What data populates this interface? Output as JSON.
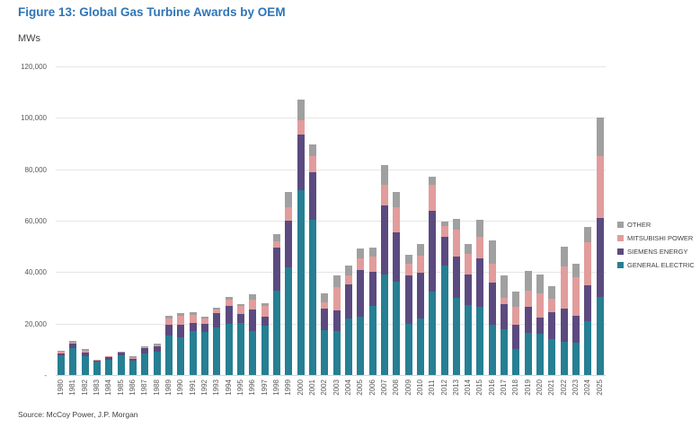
{
  "title": "Figure 13: Global Gas Turbine Awards by OEM",
  "units_label": "MWs",
  "source": "Source: McCoy Power, J.P. Morgan",
  "legend": [
    {
      "label": "OTHER",
      "color": "#A0A0A0"
    },
    {
      "label": "MITSUBISHI POWER",
      "color": "#E29C9C"
    },
    {
      "label": "SIEMENS ENERGY",
      "color": "#5B4A80"
    },
    {
      "label": "GENERAL ELECTRIC",
      "color": "#267F93"
    }
  ],
  "chart_data": {
    "type": "bar",
    "stacked": true,
    "title": "Figure 13: Global Gas Turbine Awards by OEM",
    "xlabel": "",
    "ylabel": "MWs",
    "ylim": [
      0,
      120000
    ],
    "grid": true,
    "legend_position": "right",
    "yticks": [
      {
        "label": "120,000",
        "value": 120000
      },
      {
        "label": "100,000",
        "value": 100000
      },
      {
        "label": "80,000",
        "value": 80000
      },
      {
        "label": "60,000",
        "value": 60000
      },
      {
        "label": "40,000",
        "value": 40000
      },
      {
        "label": "20,000",
        "value": 20000
      },
      {
        "label": "-",
        "value": 0
      }
    ],
    "categories": [
      "1980",
      "1981",
      "1982",
      "1983",
      "1984",
      "1985",
      "1986",
      "1987",
      "1988",
      "1989",
      "1990",
      "1991",
      "1992",
      "1993",
      "1994",
      "1995",
      "1996",
      "1997",
      "1998",
      "1999",
      "2000",
      "2001",
      "2002",
      "2003",
      "2004",
      "2005",
      "2006",
      "2007",
      "2008",
      "2009",
      "2010",
      "2011",
      "2012",
      "2013",
      "2014",
      "2015",
      "2016",
      "2017",
      "2018",
      "2019",
      "2020",
      "2021",
      "2022",
      "2023",
      "2024",
      "2025"
    ],
    "series": [
      {
        "name": "GENERAL ELECTRIC",
        "color": "#267F93",
        "values": [
          7800,
          10400,
          7200,
          5100,
          5800,
          7700,
          5700,
          8500,
          9000,
          15300,
          14500,
          17000,
          16700,
          18600,
          19800,
          20300,
          17100,
          19100,
          32700,
          41900,
          71800,
          60400,
          17500,
          17200,
          22000,
          22700,
          27000,
          39200,
          36200,
          20000,
          21900,
          32500,
          42400,
          30100,
          27300,
          26600,
          19600,
          17700,
          10100,
          16500,
          15900,
          13800,
          13000,
          12400,
          21100,
          30400
        ]
      },
      {
        "name": "SIEMENS ENERGY",
        "color": "#5B4A80",
        "values": [
          700,
          1800,
          1400,
          600,
          1200,
          900,
          600,
          1900,
          2300,
          4100,
          4900,
          3200,
          3200,
          5500,
          6900,
          3600,
          8500,
          3500,
          17000,
          18200,
          21800,
          18500,
          8400,
          7800,
          13400,
          18100,
          13100,
          26600,
          19200,
          18600,
          17800,
          31200,
          11300,
          16000,
          11800,
          18900,
          16300,
          9900,
          9300,
          9900,
          6400,
          10800,
          12800,
          10500,
          13900,
          30800
        ]
      },
      {
        "name": "MITSUBISHI POWER",
        "color": "#E29C9C",
        "values": [
          700,
          400,
          700,
          100,
          200,
          200,
          300,
          300,
          300,
          2500,
          3500,
          3100,
          2000,
          1400,
          2700,
          2800,
          3700,
          4400,
          2300,
          5200,
          5500,
          6200,
          2500,
          9300,
          3300,
          4600,
          5800,
          8200,
          9900,
          4600,
          6600,
          10400,
          4100,
          10500,
          8100,
          8100,
          7300,
          2300,
          7000,
          6400,
          9300,
          4900,
          16300,
          15100,
          16800,
          23800
        ]
      },
      {
        "name": "OTHER",
        "color": "#A0A0A0",
        "values": [
          300,
          500,
          800,
          200,
          200,
          400,
          600,
          500,
          500,
          1000,
          1200,
          1000,
          700,
          700,
          1100,
          900,
          2000,
          900,
          2700,
          6000,
          7900,
          4700,
          3200,
          4300,
          3700,
          3700,
          3600,
          7800,
          5800,
          3700,
          4700,
          3000,
          1800,
          4000,
          3700,
          6600,
          9000,
          8700,
          6000,
          7500,
          7500,
          5000,
          7900,
          5400,
          5800,
          15300
        ]
      }
    ]
  }
}
